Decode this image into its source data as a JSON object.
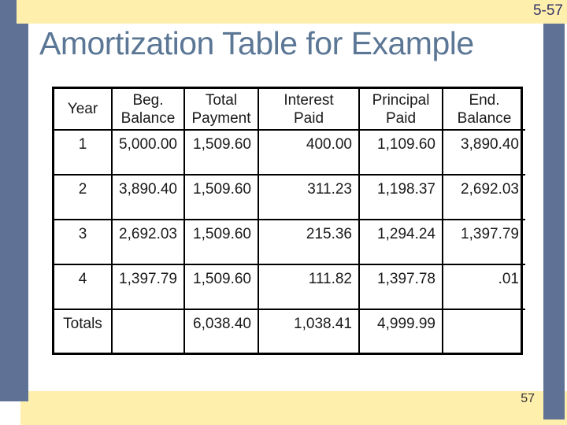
{
  "slide": {
    "slide_number_top": "5-57",
    "slide_number_bottom": "57",
    "title": "Amortization Table for Example"
  },
  "colors": {
    "accent_bar": "#5F7296",
    "band": "#FFEFAD",
    "title_text": "#5B7795",
    "slide_number_top": "#333366",
    "slide_number_bottom": "#333333",
    "table_text": "#1a1a1a",
    "table_border": "#000000"
  },
  "table": {
    "headers": [
      "Year",
      "Beg.\nBalance",
      "Total\nPayment",
      "Interest\nPaid",
      "Principal\nPaid",
      "End.\nBalance"
    ],
    "rows": [
      [
        "1",
        "5,000.00",
        "1,509.60",
        "400.00",
        "1,109.60",
        "3,890.40"
      ],
      [
        "2",
        "3,890.40",
        "1,509.60",
        "311.23",
        "1,198.37",
        "2,692.03"
      ],
      [
        "3",
        "2,692.03",
        "1,509.60",
        "215.36",
        "1,294.24",
        "1,397.79"
      ],
      [
        "4",
        "1,397.79",
        "1,509.60",
        "111.82",
        "1,397.78",
        ".01"
      ],
      [
        "Totals",
        "",
        "6,038.40",
        "1,038.41",
        "4,999.99",
        ""
      ]
    ]
  },
  "chart_data": {
    "type": "table",
    "title": "Amortization Table for Example",
    "columns": [
      "Year",
      "Beg. Balance",
      "Total Payment",
      "Interest Paid",
      "Principal Paid",
      "End. Balance"
    ],
    "rows": [
      {
        "year": "1",
        "beg_balance": 5000.0,
        "total_payment": 1509.6,
        "interest_paid": 400.0,
        "principal_paid": 1109.6,
        "end_balance": 3890.4
      },
      {
        "year": "2",
        "beg_balance": 3890.4,
        "total_payment": 1509.6,
        "interest_paid": 311.23,
        "principal_paid": 1198.37,
        "end_balance": 2692.03
      },
      {
        "year": "3",
        "beg_balance": 2692.03,
        "total_payment": 1509.6,
        "interest_paid": 215.36,
        "principal_paid": 1294.24,
        "end_balance": 1397.79
      },
      {
        "year": "4",
        "beg_balance": 1397.79,
        "total_payment": 1509.6,
        "interest_paid": 111.82,
        "principal_paid": 1397.78,
        "end_balance": 0.01
      },
      {
        "year": "Totals",
        "beg_balance": null,
        "total_payment": 6038.4,
        "interest_paid": 1038.41,
        "principal_paid": 4999.99,
        "end_balance": null
      }
    ]
  }
}
